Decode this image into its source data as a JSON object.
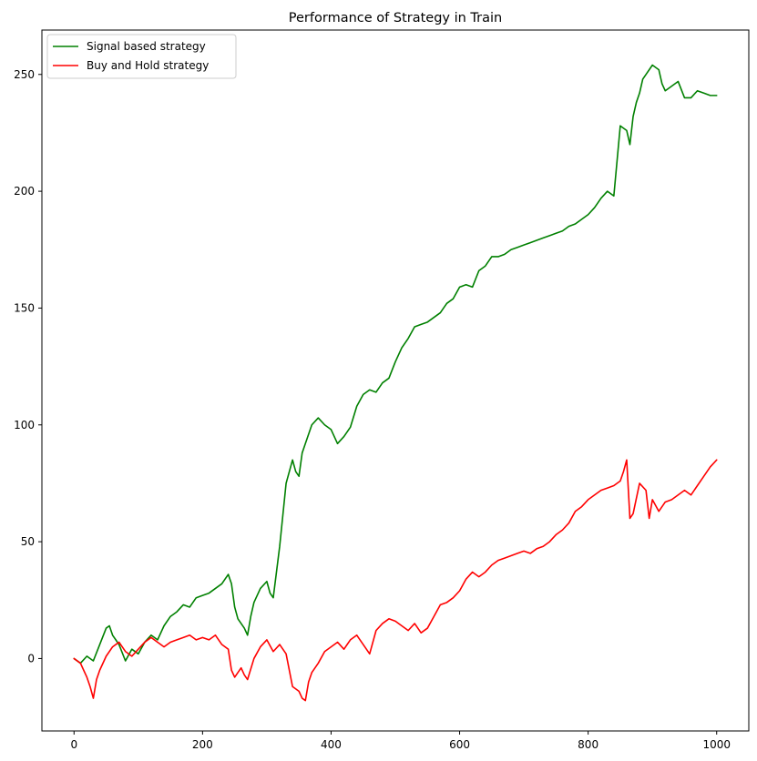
{
  "chart_data": {
    "type": "line",
    "title": "Performance of Strategy in Train",
    "xlabel": "",
    "ylabel": "",
    "xlim": [
      -50,
      1050
    ],
    "ylim": [
      -31,
      269
    ],
    "xticks": [
      0,
      200,
      400,
      600,
      800,
      1000
    ],
    "yticks": [
      0,
      50,
      100,
      150,
      200,
      250
    ],
    "grid": false,
    "legend_position": "top-left",
    "series": [
      {
        "name": "Signal based strategy",
        "color": "#008000",
        "x": [
          0,
          10,
          20,
          30,
          40,
          50,
          55,
          60,
          70,
          80,
          90,
          100,
          110,
          120,
          130,
          140,
          150,
          160,
          170,
          180,
          190,
          200,
          210,
          220,
          230,
          240,
          245,
          250,
          255,
          260,
          265,
          270,
          275,
          280,
          290,
          300,
          305,
          310,
          320,
          330,
          340,
          345,
          350,
          355,
          360,
          370,
          380,
          390,
          400,
          410,
          420,
          430,
          440,
          450,
          460,
          470,
          480,
          490,
          500,
          510,
          520,
          530,
          540,
          550,
          560,
          570,
          580,
          590,
          600,
          610,
          620,
          630,
          640,
          650,
          660,
          670,
          680,
          690,
          700,
          710,
          720,
          730,
          740,
          750,
          760,
          770,
          780,
          790,
          800,
          810,
          820,
          830,
          840,
          850,
          860,
          865,
          870,
          875,
          880,
          885,
          890,
          900,
          910,
          915,
          920,
          930,
          940,
          950,
          960,
          970,
          980,
          990,
          1000
        ],
        "y": [
          0,
          -2,
          1,
          -1,
          6,
          13,
          14,
          10,
          6,
          -1,
          4,
          2,
          7,
          10,
          8,
          14,
          18,
          20,
          23,
          22,
          26,
          27,
          28,
          30,
          32,
          36,
          32,
          22,
          17,
          15,
          13,
          10,
          18,
          24,
          30,
          33,
          28,
          26,
          48,
          75,
          85,
          80,
          78,
          88,
          92,
          100,
          103,
          100,
          98,
          92,
          95,
          99,
          108,
          113,
          115,
          114,
          118,
          120,
          127,
          133,
          137,
          142,
          143,
          144,
          146,
          148,
          152,
          154,
          159,
          160,
          159,
          166,
          168,
          172,
          172,
          173,
          175,
          176,
          177,
          178,
          179,
          180,
          181,
          182,
          183,
          185,
          186,
          188,
          190,
          193,
          197,
          200,
          198,
          228,
          226,
          220,
          232,
          238,
          242,
          248,
          250,
          254,
          252,
          246,
          243,
          245,
          247,
          240,
          240,
          243,
          242,
          241,
          241
        ]
      },
      {
        "name": "Buy and Hold strategy",
        "color": "#ff0000",
        "x": [
          0,
          10,
          15,
          20,
          25,
          30,
          35,
          40,
          50,
          60,
          70,
          80,
          90,
          100,
          110,
          120,
          130,
          140,
          150,
          160,
          170,
          180,
          190,
          200,
          210,
          220,
          230,
          240,
          245,
          250,
          255,
          260,
          265,
          270,
          280,
          290,
          300,
          310,
          320,
          330,
          340,
          350,
          355,
          360,
          365,
          370,
          380,
          390,
          400,
          410,
          420,
          430,
          440,
          450,
          460,
          470,
          480,
          490,
          500,
          510,
          520,
          530,
          540,
          550,
          560,
          570,
          580,
          590,
          600,
          610,
          620,
          630,
          640,
          650,
          660,
          670,
          680,
          690,
          700,
          710,
          720,
          730,
          740,
          750,
          760,
          770,
          780,
          790,
          800,
          810,
          820,
          830,
          840,
          850,
          855,
          860,
          865,
          870,
          880,
          890,
          895,
          900,
          910,
          920,
          930,
          940,
          950,
          960,
          970,
          980,
          990,
          1000
        ],
        "y": [
          0,
          -2,
          -5,
          -8,
          -12,
          -17,
          -9,
          -5,
          1,
          5,
          7,
          3,
          1,
          4,
          7,
          9,
          7,
          5,
          7,
          8,
          9,
          10,
          8,
          9,
          8,
          10,
          6,
          4,
          -5,
          -8,
          -6,
          -4,
          -7,
          -9,
          0,
          5,
          8,
          3,
          6,
          2,
          -12,
          -14,
          -17,
          -18,
          -10,
          -6,
          -2,
          3,
          5,
          7,
          4,
          8,
          10,
          6,
          2,
          12,
          15,
          17,
          16,
          14,
          12,
          15,
          11,
          13,
          18,
          23,
          24,
          26,
          29,
          34,
          37,
          35,
          37,
          40,
          42,
          43,
          44,
          45,
          46,
          45,
          47,
          48,
          50,
          53,
          55,
          58,
          63,
          65,
          68,
          70,
          72,
          73,
          74,
          76,
          80,
          85,
          60,
          62,
          75,
          72,
          60,
          68,
          63,
          67,
          68,
          70,
          72,
          70,
          74,
          78,
          82,
          85
        ]
      }
    ]
  }
}
